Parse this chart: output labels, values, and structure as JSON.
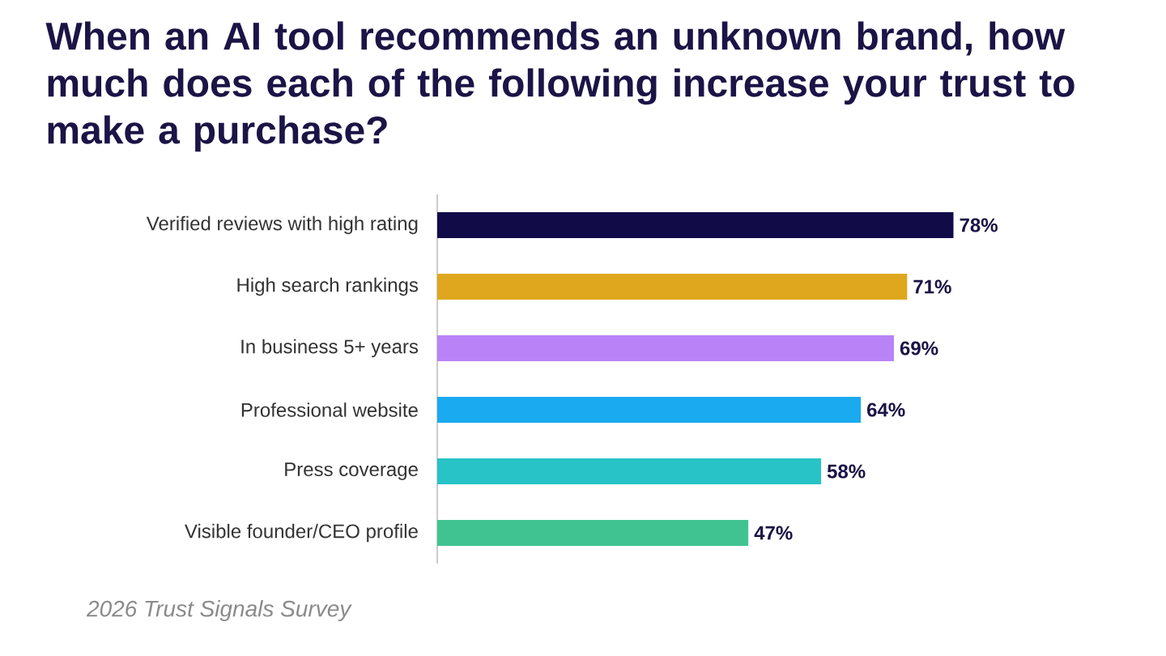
{
  "chart_data": {
    "type": "bar",
    "orientation": "horizontal",
    "title": "When an AI tool recommends an unknown brand, how much does each of the following increase your trust to make a purchase?",
    "categories": [
      "Verified reviews with high rating",
      "High search rankings",
      "In business 5+ years",
      "Professional website",
      "Press coverage",
      "Visible founder/CEO profile"
    ],
    "values": [
      78,
      71,
      69,
      64,
      58,
      47
    ],
    "colors": [
      "#110c48",
      "#dea71e",
      "#b983f7",
      "#1aaaf0",
      "#27c3c6",
      "#41c391"
    ],
    "value_labels": [
      "78%",
      "71%",
      "69%",
      "64%",
      "58%",
      "47%"
    ],
    "grid": false,
    "tick_labels": "y",
    "annotations": [
      "2026 Trust Signals Survey"
    ]
  }
}
